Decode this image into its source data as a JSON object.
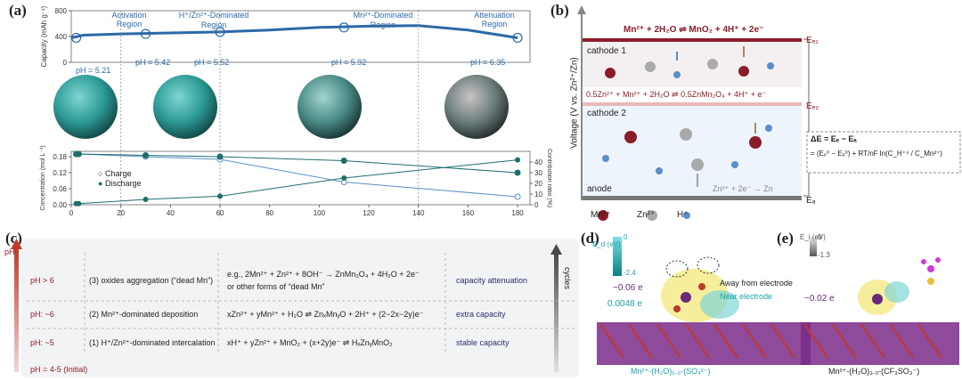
{
  "panel_a": {
    "label": "(a)",
    "regions": [
      "Activation\nRegion",
      "H⁺/Zn²⁺-Dominated\nRegion",
      "Mn²⁺-Dominated\nRegion",
      "Attenuation\nRegion"
    ],
    "ph_marks": [
      "pH = 5.21",
      "pH = 5.42",
      "pH = 5.52",
      "pH = 5.92",
      "pH = 6.35"
    ],
    "top_ylabel": "Capacity (mAh g⁻¹)",
    "bottom_ylabel_left": "Concentration (mol L⁻¹)",
    "bottom_ylabel_right": "Contribution ratio (%)",
    "xlabel": "Cycle Number",
    "legend": [
      "Charge",
      "Discharge"
    ]
  },
  "panel_b": {
    "label": "(b)",
    "ylabel": "Voltage (V vs. Zn²⁺/Zn)",
    "eq1": "Mn²⁺ + 2H₂O ⇌ MnO₂ + 4H⁺ + 2e⁻",
    "eq2": "0.5Zn²⁺ + Mn²⁺ + 2H₂O ⇌ 0.5ZnMn₂O₄ + 4H⁺ + e⁻",
    "cathode1": "cathode 1",
    "cathode2": "cathode 2",
    "anode": "anode",
    "anode_eq": "Zn²⁺ + 2e⁻ → Zn",
    "ec1": "Eₑ₁",
    "ec2": "Eₑ₂",
    "ea": "Eₐ",
    "deltaE": "ΔE = Eₑ − Eₐ",
    "deltaE2": "= (Eₑ⁰ − Eₐ⁰) + RT/nF ln(C_H⁺⁴ / C_Mn²⁺)",
    "legend": [
      "Mn²⁺",
      "Zn²⁺",
      "H⁺"
    ],
    "colors": {
      "mn": "#8b1d2a",
      "zn": "#9a9a9a",
      "h": "#5a8fc8"
    }
  },
  "panel_c": {
    "label": "(c)",
    "left_axis": "pH",
    "right_axis": "cycles",
    "rows": [
      {
        "ph": "pH > 6",
        "stage": "(3) oxides aggregation (“dead Mn”)",
        "reaction": "e.g., 2Mn²⁺ + Zn²⁺ + 8OH⁻ → ZnMn₂O₄ + 4H₂O + 2e⁻",
        "reaction2": "or other forms of “dead Mn”",
        "effect": "capacity attenuation"
      },
      {
        "ph": "pH: ~6",
        "stage": "(2) Mn²⁺-dominated deposition",
        "reaction": "xZn²⁺ + yMn²⁺ + H₂O ⇌ ZnₓMnᵧO + 2H⁺ + (2−2x−2y)e⁻",
        "reaction2": "",
        "effect": "extra capacity"
      },
      {
        "ph": "pH: ~5",
        "stage": "(1) H⁺/Zn²⁺-dominated intercalation",
        "reaction": "xH⁺ + yZn²⁺ + MnO₂ + (x+2y)e⁻ ⇌ HₓZnᵧMnO₂",
        "reaction2": "",
        "effect": "stable capacity"
      }
    ],
    "initial": "pH = 4-5 (Initial)"
  },
  "panel_d": {
    "label": "(d)",
    "scale_unit": "E_d (eV)",
    "scale_top": "0",
    "scale_bottom": "-2.4",
    "q1": "−0.06 e",
    "q2": "0.0048 e",
    "away": "Away from electrode",
    "near": "Near electrode",
    "caption": "Mn²⁺-(H₂O)₆.₀-(SO₄²⁻)"
  },
  "panel_e": {
    "label": "(e)",
    "scale_unit": "E_i (eV)",
    "scale_top": "0",
    "scale_bottom": "-1.3",
    "q1": "−0.02 e",
    "caption": "Mn²⁺-(H₂O)₃.₀-(CF₃SO₃⁻)"
  },
  "chart_data": [
    {
      "type": "line",
      "title": "",
      "ylabel": "Capacity (mAh g⁻¹)",
      "xlim": [
        0,
        185
      ],
      "ylim": [
        0,
        800
      ],
      "yticks": [
        0,
        400,
        800
      ],
      "series": [
        {
          "x": [
            0,
            5,
            20,
            40,
            60,
            80,
            100,
            120,
            140,
            160,
            180
          ],
          "values": [
            380,
            420,
            440,
            455,
            470,
            500,
            540,
            560,
            570,
            500,
            380
          ]
        }
      ]
    },
    {
      "type": "scatter",
      "xlabel": "Cycle Number",
      "ylabel": "Concentration (mol L⁻¹)",
      "xlim": [
        0,
        185
      ],
      "ylim": [
        0,
        0.2
      ],
      "xticks": [
        0,
        20,
        40,
        60,
        80,
        100,
        120,
        140,
        160,
        180
      ],
      "yticks": [
        0.0,
        0.06,
        0.12,
        0.18
      ],
      "series": [
        {
          "name": "Charge",
          "x": [
            2,
            3,
            30,
            60,
            110,
            180
          ],
          "values": [
            0.19,
            0.19,
            0.18,
            0.17,
            0.085,
            0.03
          ]
        },
        {
          "name": "Discharge",
          "x": [
            2,
            3,
            30,
            60,
            110,
            180
          ],
          "values": [
            0.19,
            0.19,
            0.185,
            0.18,
            0.165,
            0.12
          ]
        }
      ],
      "right_axis": {
        "label": "Contribution ratio (%)",
        "ylim": [
          0,
          50
        ],
        "yticks": [
          0,
          10,
          20,
          30,
          40
        ],
        "values": [
          1,
          1,
          5,
          8,
          25,
          42
        ]
      }
    }
  ]
}
